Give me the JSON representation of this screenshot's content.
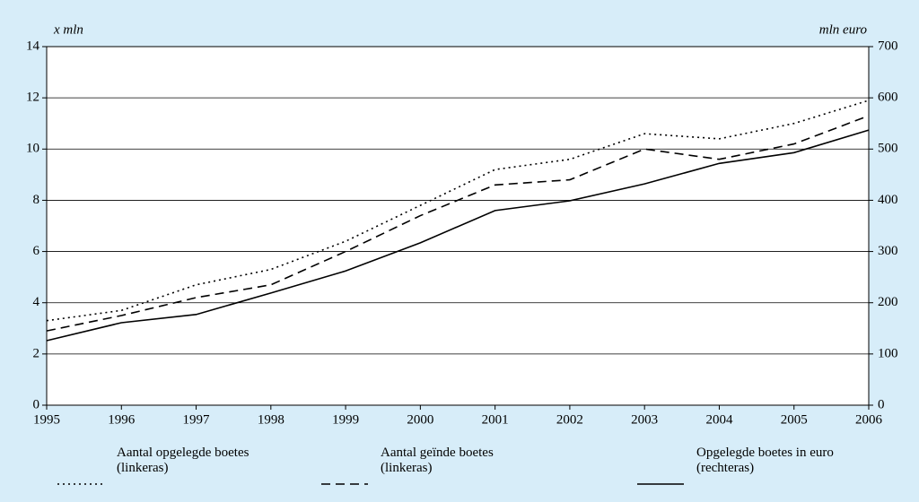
{
  "chart_data": {
    "type": "line",
    "y_label": "x mln",
    "y2_label": "mln euro",
    "x": [
      1995,
      1996,
      1997,
      1998,
      1999,
      2000,
      2001,
      2002,
      2003,
      2004,
      2005,
      2006
    ],
    "xlim": [
      1995,
      2006
    ],
    "xticks": [
      1995,
      1996,
      1997,
      1998,
      1999,
      2000,
      2001,
      2002,
      2003,
      2004,
      2005,
      2006
    ],
    "ylim": [
      0,
      14
    ],
    "yticks": [
      0,
      2,
      4,
      6,
      8,
      10,
      12,
      14
    ],
    "y2lim": [
      0,
      700
    ],
    "y2ticks": [
      0,
      100,
      200,
      300,
      400,
      500,
      600,
      700
    ],
    "grid": true,
    "legend": "bottom",
    "series": [
      {
        "name": "Aantal opgelegde boetes (linkeras)",
        "color": "#000000",
        "style": "dotted",
        "values": [
          3.3,
          3.7,
          4.7,
          5.3,
          6.4,
          7.8,
          9.2,
          9.6,
          10.6,
          10.4,
          11.0,
          11.9
        ]
      },
      {
        "name": "Aantal geïnde boetes (linkeras)",
        "color": "#000000",
        "style": "dashed",
        "values": [
          2.9,
          3.5,
          4.2,
          4.7,
          6.0,
          7.4,
          8.6,
          8.8,
          10.0,
          9.6,
          10.2,
          11.3
        ]
      },
      {
        "name": "Opgelegde boetes in euro (rechteras)",
        "color": "#000000",
        "style": "solid",
        "axis": "y2",
        "values": [
          126,
          161,
          177,
          219,
          262,
          317,
          380,
          399,
          432,
          472,
          493,
          537
        ]
      }
    ]
  }
}
